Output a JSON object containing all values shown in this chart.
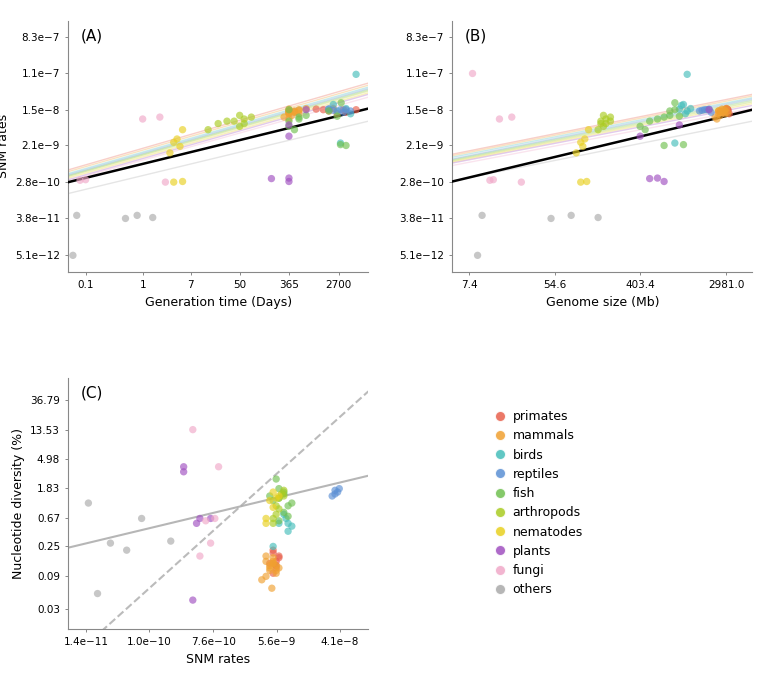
{
  "groups": [
    "primates",
    "mammals",
    "birds",
    "reptiles",
    "fish",
    "arthropods",
    "nematodes",
    "plants",
    "fungi",
    "others"
  ],
  "colors": {
    "primates": "#E8604C",
    "mammals": "#F0A030",
    "birds": "#45BDBA",
    "reptiles": "#5B8FD4",
    "fish": "#70C050",
    "arthropods": "#AACC22",
    "nematodes": "#E8D020",
    "plants": "#A050C0",
    "fungi": "#F0A8C8",
    "others": "#AAAAAA"
  },
  "panelA": {
    "title": "(A)",
    "xlabel": "Generation time (Days)",
    "ylabel": "SNM rates",
    "xticks": [
      0.1,
      1,
      7,
      50,
      365,
      2700
    ],
    "xtick_labels": [
      "0.1",
      "1",
      "7",
      "50",
      "365",
      "2700"
    ],
    "yticks": [
      5.1e-12,
      3.8e-11,
      2.8e-10,
      2.1e-09,
      1.5e-08,
      1.1e-07,
      8.3e-07
    ],
    "ytick_labels": [
      "5.1e−12",
      "3.8e−11",
      "2.8e−10",
      "2.1e−9",
      "1.5e−8",
      "1.1e−7",
      "8.3e−7"
    ],
    "xlim": [
      0.05,
      9000
    ],
    "ylim": [
      2e-12,
      2e-06
    ],
    "points": {
      "primates": {
        "x": [
          1460,
          1825,
          2555,
          3650,
          2190,
          3285,
          1095,
          5475
        ],
        "y": [
          1.5e-08,
          1.4e-08,
          1.2e-08,
          1.3e-08,
          1.6e-08,
          1.5e-08,
          1.55e-08,
          1.5e-08
        ]
      },
      "mammals": {
        "x": [
          365,
          548,
          730,
          365,
          456,
          547,
          365,
          365,
          456,
          365,
          456,
          547,
          365,
          410,
          365,
          300
        ],
        "y": [
          1.4e-08,
          1.5e-08,
          1.6e-08,
          1.3e-08,
          1.35e-08,
          1.45e-08,
          1.25e-08,
          1.2e-08,
          1.4e-08,
          1.55e-08,
          1.3e-08,
          1.2e-08,
          1.4e-08,
          1.1e-08,
          9e-09,
          1e-08
        ]
      },
      "birds": {
        "x": [
          1825,
          2190,
          2555,
          3650,
          5475,
          4380,
          2920
        ],
        "y": [
          1.55e-08,
          2e-08,
          1.4e-08,
          1.6e-08,
          1.05e-07,
          1.2e-08,
          2.4e-09
        ]
      },
      "reptiles": {
        "x": [
          2190,
          3650,
          1825,
          2920,
          3285,
          4380
        ],
        "y": [
          1.45e-08,
          1.5e-08,
          1.55e-08,
          1.5e-08,
          1.3e-08,
          1.4e-08
        ]
      },
      "fish": {
        "x": [
          365,
          456,
          730,
          548,
          365,
          547,
          365,
          2555,
          1825,
          2920,
          3650,
          3000
        ],
        "y": [
          6e-09,
          5e-09,
          1.1e-08,
          9e-09,
          8e-09,
          1e-08,
          1.5e-08,
          1.05e-08,
          1.4e-08,
          2.2e-09,
          2.1e-09,
          2.2e-08
        ]
      },
      "arthropods": {
        "x": [
          14,
          21,
          30,
          50,
          60,
          50,
          40,
          60,
          80
        ],
        "y": [
          5e-09,
          7e-09,
          8e-09,
          6e-09,
          9e-09,
          1.1e-08,
          8e-09,
          7e-09,
          1e-08
        ]
      },
      "nematodes": {
        "x": [
          3.5,
          4,
          5,
          3,
          4.5,
          5,
          3.5
        ],
        "y": [
          2.8e-10,
          3e-09,
          5e-09,
          1.4e-09,
          2e-09,
          2.9e-10,
          2.5e-09
        ]
      },
      "plants": {
        "x": [
          365,
          365,
          730,
          180,
          365,
          365
        ],
        "y": [
          3.5e-09,
          6.5e-09,
          1.5e-08,
          3.4e-10,
          3.5e-10,
          2.9e-10
        ]
      },
      "fungi": {
        "x": [
          0.08,
          1,
          2,
          0.1,
          2.5
        ],
        "y": [
          3.1e-10,
          9e-09,
          1e-08,
          3.2e-10,
          2.8e-10
        ]
      },
      "others": {
        "x": [
          0.06,
          0.07,
          0.5,
          0.8,
          1.5
        ],
        "y": [
          5e-12,
          4.5e-11,
          3.8e-11,
          4.5e-11,
          4e-11
        ]
      }
    },
    "lines": [
      {
        "color": "#E8604C",
        "x0": 0.05,
        "x1": 9000,
        "y0": 5.5e-10,
        "y1": 6.5e-08
      },
      {
        "color": "#F0A030",
        "x0": 0.05,
        "x1": 9000,
        "y0": 5e-10,
        "y1": 5.8e-08
      },
      {
        "color": "#45BDBA",
        "x0": 0.05,
        "x1": 9000,
        "y0": 4.5e-10,
        "y1": 5.2e-08
      },
      {
        "color": "#5B8FD4",
        "x0": 0.05,
        "x1": 9000,
        "y0": 4.2e-10,
        "y1": 4.8e-08
      },
      {
        "color": "#70C050",
        "x0": 0.05,
        "x1": 9000,
        "y0": 4e-10,
        "y1": 4.5e-08
      },
      {
        "color": "#AACC22",
        "x0": 0.05,
        "x1": 9000,
        "y0": 3.8e-10,
        "y1": 4.2e-08
      },
      {
        "color": "#E8D020",
        "x0": 0.05,
        "x1": 9000,
        "y0": 3.5e-10,
        "y1": 3.8e-08
      },
      {
        "color": "#A050C0",
        "x0": 0.05,
        "x1": 9000,
        "y0": 3.2e-10,
        "y1": 3.5e-08
      },
      {
        "color": "#F0A8C8",
        "x0": 0.05,
        "x1": 9000,
        "y0": 3e-10,
        "y1": 3e-08
      },
      {
        "color": "#AAAAAA",
        "x0": 0.05,
        "x1": 9000,
        "y0": 1.5e-10,
        "y1": 8e-09
      }
    ],
    "overall_line": {
      "x0": 0.05,
      "x1": 9000,
      "y0": 2.8e-10,
      "y1": 1.6e-08
    }
  },
  "panelB": {
    "title": "(B)",
    "xlabel": "Genome size (Mb)",
    "ylabel": "SNM rates",
    "xticks": [
      7.4,
      54.6,
      403.4,
      2981.0
    ],
    "xtick_labels": [
      "7.4",
      "54.6",
      "403.4",
      "2981.0"
    ],
    "yticks": [
      5.1e-12,
      3.8e-11,
      2.8e-10,
      2.1e-09,
      1.5e-08,
      1.1e-07,
      8.3e-07
    ],
    "ytick_labels": [
      "5.1e−12",
      "3.8e−11",
      "2.8e−10",
      "2.1e−9",
      "1.5e−8",
      "1.1e−7",
      "8.3e−7"
    ],
    "xlim": [
      5,
      5500
    ],
    "ylim": [
      2e-12,
      2e-06
    ],
    "points": {
      "primates": {
        "x": [
          3000,
          3100,
          3200,
          2900,
          3000,
          3100,
          3000,
          3100
        ],
        "y": [
          1.5e-08,
          1.4e-08,
          1.2e-08,
          1.3e-08,
          1.6e-08,
          1.5e-08,
          1.55e-08,
          1.5e-08
        ]
      },
      "mammals": {
        "x": [
          2500,
          2800,
          3000,
          2600,
          2700,
          2900,
          3100,
          2500,
          2600,
          2700,
          2800,
          2900,
          2500,
          2600,
          2400,
          2300
        ],
        "y": [
          1.4e-08,
          1.5e-08,
          1.6e-08,
          1.3e-08,
          1.35e-08,
          1.45e-08,
          1.25e-08,
          1.2e-08,
          1.4e-08,
          1.55e-08,
          1.3e-08,
          1.2e-08,
          1.4e-08,
          1.1e-08,
          9e-09,
          1e-08
        ]
      },
      "birds": {
        "x": [
          1000,
          1100,
          1200,
          1300,
          1200,
          1150,
          900,
          1050
        ],
        "y": [
          1.55e-08,
          2e-08,
          1.4e-08,
          1.6e-08,
          1.05e-07,
          1.2e-08,
          2.4e-09,
          1.9e-08
        ]
      },
      "reptiles": {
        "x": [
          1700,
          1800,
          2000,
          1900,
          2100,
          1600
        ],
        "y": [
          1.45e-08,
          1.5e-08,
          1.55e-08,
          1.5e-08,
          1.3e-08,
          1.4e-08
        ]
      },
      "fish": {
        "x": [
          400,
          450,
          800,
          600,
          500,
          700,
          900,
          1000,
          800,
          1100,
          700,
          900
        ],
        "y": [
          6e-09,
          5e-09,
          1.1e-08,
          9e-09,
          8e-09,
          1e-08,
          1.5e-08,
          1.05e-08,
          1.4e-08,
          2.2e-09,
          2.1e-09,
          2.2e-08
        ]
      },
      "arthropods": {
        "x": [
          150,
          160,
          200,
          170,
          180,
          170,
          160,
          180,
          200
        ],
        "y": [
          5e-09,
          7e-09,
          8e-09,
          6e-09,
          9e-09,
          1.1e-08,
          8e-09,
          7e-09,
          1e-08
        ]
      },
      "nematodes": {
        "x": [
          100,
          110,
          120,
          90,
          105,
          115,
          100
        ],
        "y": [
          2.8e-10,
          3e-09,
          5e-09,
          1.4e-09,
          2e-09,
          2.9e-10,
          2.5e-09
        ]
      },
      "plants": {
        "x": [
          400,
          1000,
          2000,
          500,
          600,
          700
        ],
        "y": [
          3.5e-09,
          6.5e-09,
          1.5e-08,
          3.4e-10,
          3.5e-10,
          2.9e-10
        ]
      },
      "fungi": {
        "x": [
          12,
          15,
          20,
          13,
          25,
          8
        ],
        "y": [
          3.1e-10,
          9e-09,
          1e-08,
          3.2e-10,
          2.8e-10,
          1.1e-07
        ]
      },
      "others": {
        "x": [
          9,
          10,
          50,
          80,
          150
        ],
        "y": [
          5e-12,
          4.5e-11,
          3.8e-11,
          4.5e-11,
          4e-11
        ]
      }
    },
    "lines": [
      {
        "color": "#E8604C",
        "x0": 5,
        "x1": 5500,
        "y0": 1.3e-09,
        "y1": 3.5e-08
      },
      {
        "color": "#F0A030",
        "x0": 5,
        "x1": 5500,
        "y0": 1.2e-09,
        "y1": 3.2e-08
      },
      {
        "color": "#45BDBA",
        "x0": 5,
        "x1": 5500,
        "y0": 1.1e-09,
        "y1": 2.9e-08
      },
      {
        "color": "#5B8FD4",
        "x0": 5,
        "x1": 5500,
        "y0": 1e-09,
        "y1": 2.7e-08
      },
      {
        "color": "#70C050",
        "x0": 5,
        "x1": 5500,
        "y0": 9.5e-10,
        "y1": 2.5e-08
      },
      {
        "color": "#AACC22",
        "x0": 5,
        "x1": 5500,
        "y0": 9e-10,
        "y1": 2.3e-08
      },
      {
        "color": "#E8D020",
        "x0": 5,
        "x1": 5500,
        "y0": 8.5e-10,
        "y1": 2.1e-08
      },
      {
        "color": "#A050C0",
        "x0": 5,
        "x1": 5500,
        "y0": 8e-10,
        "y1": 1.9e-08
      },
      {
        "color": "#F0A8C8",
        "x0": 5,
        "x1": 5500,
        "y0": 7e-10,
        "y1": 1.6e-08
      },
      {
        "color": "#AAAAAA",
        "x0": 5,
        "x1": 5500,
        "y0": 3e-10,
        "y1": 8e-09
      }
    ],
    "overall_line": {
      "x0": 5,
      "x1": 5500,
      "y0": 2.9e-10,
      "y1": 1.5e-08
    }
  },
  "panelC": {
    "title": "(C)",
    "xlabel": "SNM rates",
    "ylabel": "Nucleotide diversity (%)",
    "xticks": [
      1.4e-11,
      1e-10,
      7.6e-10,
      5.6e-09,
      4.1e-08
    ],
    "xtick_labels": [
      "1.4e−11",
      "1.0e−10",
      "7.6e−10",
      "5.6e−9",
      "4.1e−8"
    ],
    "yticks": [
      0.03,
      0.09,
      0.25,
      0.67,
      1.83,
      4.98,
      13.53,
      36.79
    ],
    "ytick_labels": [
      "0.03",
      "0.09",
      "0.25",
      "0.67",
      "1.83",
      "4.98",
      "13.53",
      "36.79"
    ],
    "xlim": [
      8e-12,
      1e-07
    ],
    "ylim": [
      0.015,
      80
    ],
    "points": {
      "primates": {
        "x": [
          5e-09,
          5.5e-09,
          6e-09,
          5e-09,
          5.5e-09,
          6e-09,
          5.5e-09,
          4.5e-09,
          5e-09
        ],
        "y": [
          0.2,
          0.15,
          0.18,
          0.22,
          0.13,
          0.17,
          0.12,
          0.14,
          0.1
        ]
      },
      "mammals": {
        "x": [
          4e-09,
          5e-09,
          5.5e-09,
          4.5e-09,
          5e-09,
          5.5e-09,
          6e-09,
          4e-09,
          5e-09,
          4.5e-09,
          5e-09,
          5.5e-09,
          4e-09,
          4.5e-09,
          3.5e-09,
          4.8e-09
        ],
        "y": [
          0.18,
          0.15,
          0.13,
          0.11,
          0.14,
          0.1,
          0.12,
          0.09,
          0.14,
          0.12,
          0.17,
          0.11,
          0.15,
          0.13,
          0.08,
          0.06
        ]
      },
      "birds": {
        "x": [
          6e-09,
          7e-09,
          8e-09,
          9e-09,
          7.5e-09,
          8e-09,
          5e-09
        ],
        "y": [
          0.55,
          0.75,
          0.55,
          0.5,
          0.65,
          0.42,
          0.25
        ]
      },
      "reptiles": {
        "x": [
          3.5e-08,
          4e-08,
          3.8e-08,
          3.2e-08,
          3.5e-08
        ],
        "y": [
          1.5,
          1.8,
          1.6,
          1.4,
          1.7
        ]
      },
      "fish": {
        "x": [
          5e-09,
          6e-09,
          7e-09,
          6e-09,
          5.5e-09,
          4.5e-09,
          7e-09,
          8e-09,
          9e-09,
          7e-09,
          8e-09,
          6e-09
        ],
        "y": [
          1.2,
          1.3,
          1.5,
          1.8,
          2.5,
          1.4,
          0.8,
          1.0,
          1.1,
          1.6,
          0.7,
          0.6
        ]
      },
      "arthropods": {
        "x": [
          5.5e-09,
          6e-09,
          7e-09,
          5e-09,
          6.5e-09,
          5.5e-09,
          6e-09,
          7e-09,
          5e-09
        ],
        "y": [
          1.0,
          1.3,
          1.7,
          0.65,
          1.5,
          0.75,
          0.9,
          1.4,
          0.55
        ]
      },
      "nematodes": {
        "x": [
          4e-09,
          5e-09,
          6e-09,
          4.5e-09,
          5.5e-09,
          4e-09,
          5e-09
        ],
        "y": [
          0.65,
          1.6,
          1.4,
          1.2,
          1.3,
          0.55,
          0.95
        ]
      },
      "plants": {
        "x": [
          3e-10,
          5e-10,
          7e-10,
          4e-10,
          3e-10,
          4.5e-10
        ],
        "y": [
          3.8,
          0.65,
          0.65,
          0.04,
          3.2,
          0.55
        ]
      },
      "fungi": {
        "x": [
          6e-10,
          8e-10,
          9e-10,
          7e-10,
          5e-10,
          4e-10
        ],
        "y": [
          0.6,
          0.65,
          3.8,
          0.28,
          0.18,
          13.5
        ]
      },
      "others": {
        "x": [
          1.5e-11,
          2e-11,
          3e-11,
          5e-11,
          8e-11,
          2e-10
        ],
        "y": [
          1.1,
          0.05,
          0.28,
          0.22,
          0.65,
          0.3
        ]
      }
    },
    "solid_line": {
      "x0": 8e-12,
      "x1": 1e-07,
      "y0": 0.24,
      "y1": 2.8
    },
    "dashed_line": {
      "x0": 8e-12,
      "x1": 1e-07,
      "y0": 0.005,
      "y1": 50
    }
  },
  "legend_groups": [
    "primates",
    "mammals",
    "birds",
    "reptiles",
    "fish",
    "arthropods",
    "nematodes",
    "plants",
    "fungi",
    "others"
  ]
}
